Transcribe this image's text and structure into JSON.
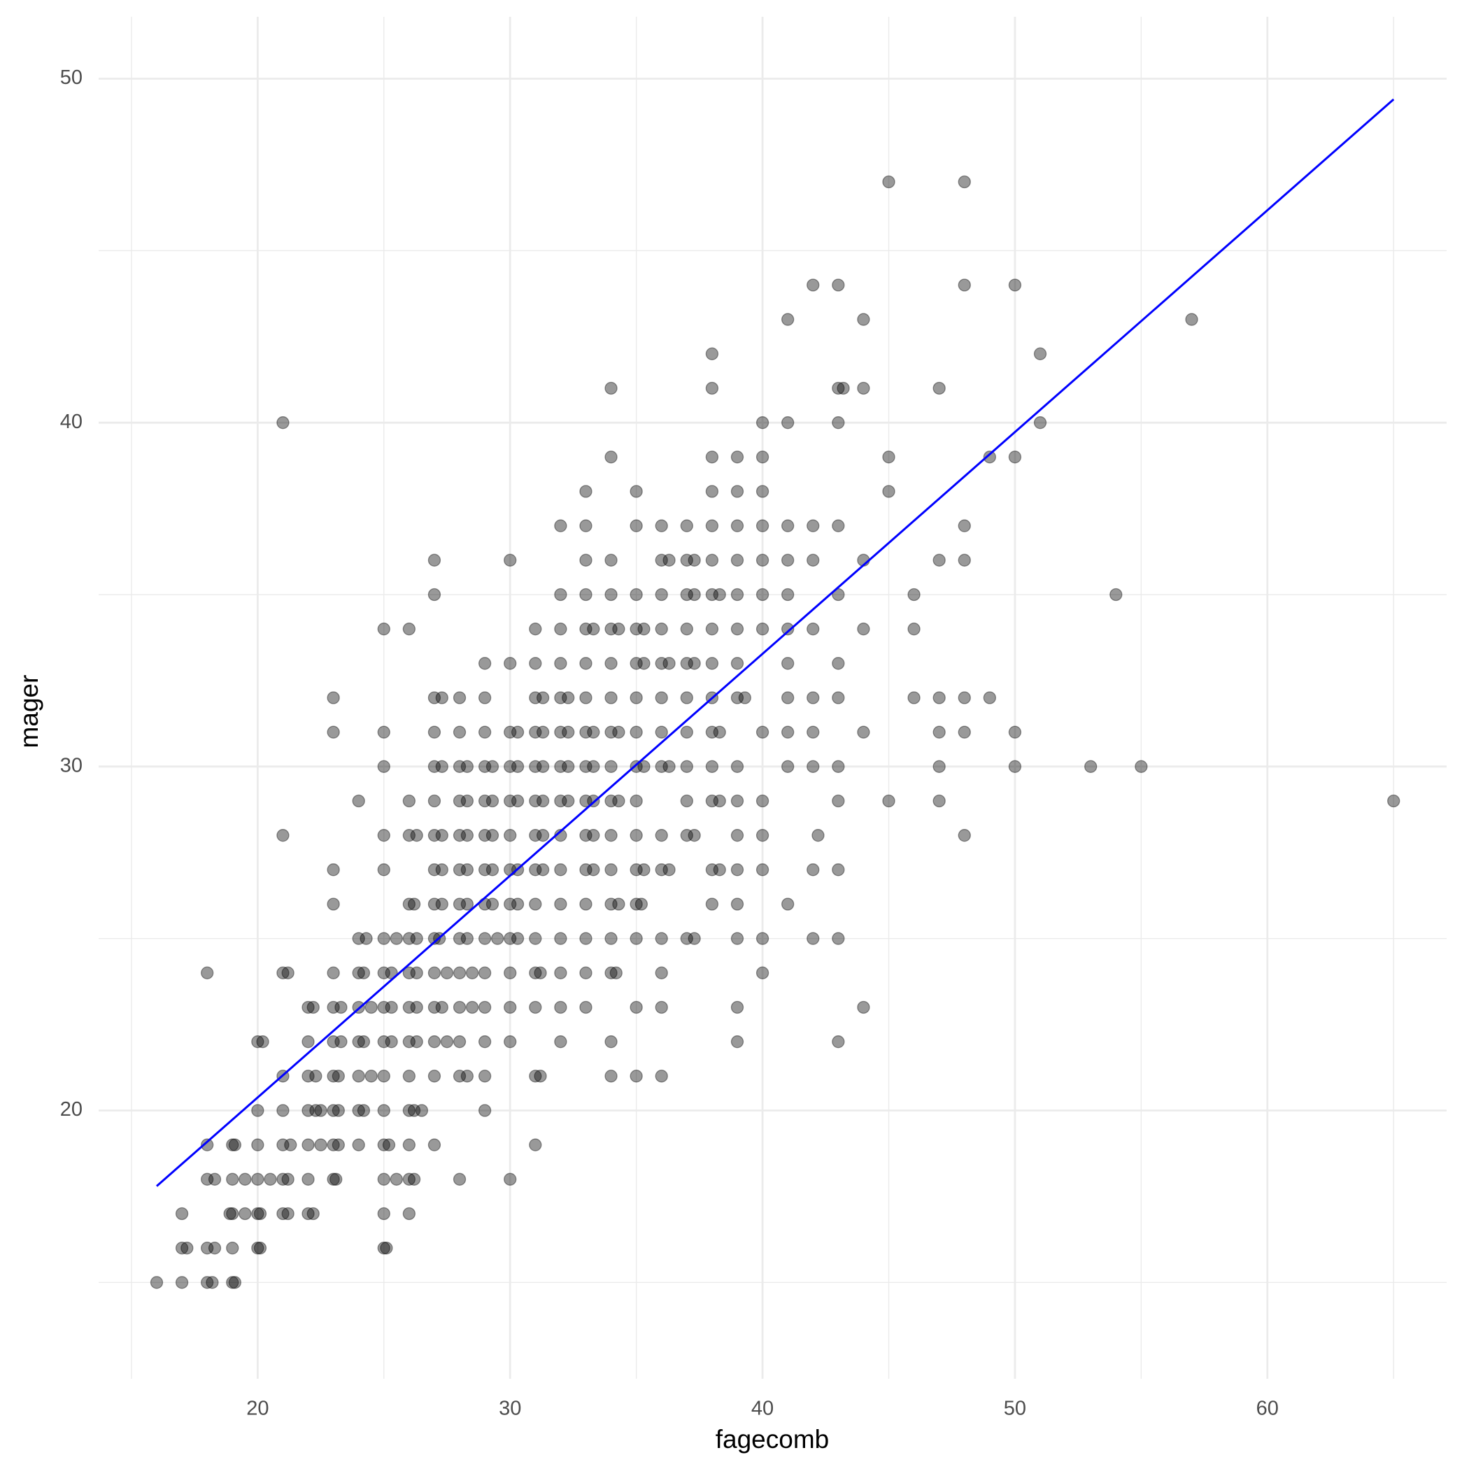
{
  "chart_data": {
    "type": "scatter",
    "x_label": "fagecomb",
    "y_label": "mager",
    "xlim": [
      13.7,
      67.1
    ],
    "ylim": [
      12.2,
      51.8
    ],
    "xticks": [
      20,
      30,
      40,
      50,
      60
    ],
    "yticks": [
      20,
      30,
      40,
      50
    ],
    "xminor": [
      15,
      25,
      35,
      45,
      55,
      65
    ],
    "yminor": [
      15,
      25,
      35,
      45
    ],
    "grid": true,
    "color": "#000000",
    "alpha": 0.4,
    "fit_line": {
      "x": [
        16,
        65
      ],
      "y": [
        17.8,
        49.4
      ],
      "color": "#0000ff"
    },
    "x": [
      16,
      17,
      18,
      18.2,
      19,
      19.1,
      17,
      17.2,
      18,
      18.3,
      19,
      20,
      20.1,
      25,
      25.1,
      17,
      18.9,
      19,
      19.5,
      20,
      20.1,
      21,
      21.2,
      22,
      22.2,
      25,
      26,
      18,
      18.3,
      19,
      19.5,
      20,
      20.5,
      21,
      21.2,
      22,
      23,
      23.1,
      25,
      25.5,
      26,
      26.2,
      28,
      30,
      18,
      19,
      19.1,
      20,
      21,
      21.3,
      22,
      22.5,
      23,
      23.2,
      24,
      25,
      25.2,
      26,
      27,
      31,
      20,
      21,
      22,
      22.3,
      22.5,
      23,
      23.2,
      24,
      24.2,
      25,
      26,
      26.2,
      26.5,
      29,
      21,
      22,
      22.3,
      23,
      23.2,
      24,
      24.5,
      25,
      26,
      27,
      28,
      28.3,
      29,
      31,
      31.2,
      34,
      35,
      36,
      20,
      20.2,
      22,
      23,
      23.3,
      24,
      24.2,
      25,
      25.3,
      26,
      26.3,
      27,
      27.5,
      28,
      29,
      30,
      32,
      34,
      39,
      43,
      22,
      22.2,
      23,
      23.3,
      24,
      24.5,
      25,
      25.3,
      26,
      26.3,
      27,
      27.3,
      28,
      28.5,
      29,
      30,
      31,
      32,
      33,
      35,
      36,
      39,
      44,
      18,
      21,
      21.2,
      23,
      24,
      24.2,
      25,
      25.3,
      26,
      26.3,
      27,
      27.5,
      28,
      28.5,
      29,
      30,
      31,
      31.2,
      32,
      33,
      34,
      34.2,
      36,
      40,
      24,
      24.3,
      25,
      25.5,
      26,
      26.3,
      27,
      27.2,
      28,
      28.3,
      29,
      29.5,
      30,
      30.3,
      31,
      32,
      33,
      34,
      35,
      36,
      37,
      37.3,
      39,
      40,
      42,
      43,
      23,
      26,
      26.2,
      27,
      27.3,
      28,
      28.3,
      29,
      29.3,
      30,
      30.3,
      31,
      32,
      33,
      34,
      34.3,
      35,
      35.2,
      38,
      39,
      41,
      23,
      25,
      27,
      27.3,
      28,
      28.3,
      29,
      29.3,
      30,
      30.3,
      31,
      31.3,
      32,
      33,
      33.3,
      34,
      35,
      35.3,
      36,
      36.3,
      38,
      38.3,
      39,
      40,
      42,
      43,
      21,
      25,
      26,
      26.3,
      27,
      27.3,
      28,
      28.3,
      29,
      29.3,
      30,
      31,
      31.3,
      32,
      33,
      33.3,
      34,
      35,
      36,
      37,
      37.3,
      39,
      40,
      42.2,
      48,
      24,
      26,
      27,
      28,
      28.3,
      29,
      29.3,
      30,
      30.3,
      31,
      31.3,
      32,
      32.3,
      33,
      33.3,
      34,
      34.3,
      35,
      37,
      38,
      38.3,
      39,
      40,
      43,
      45,
      47,
      65,
      25,
      27,
      27.3,
      28,
      28.3,
      29,
      29.3,
      30,
      30.3,
      31,
      31.3,
      32,
      32.3,
      33,
      33.3,
      34,
      35,
      35.3,
      36,
      36.3,
      37,
      38,
      39,
      41,
      42,
      43,
      47,
      50,
      53,
      55,
      23,
      25,
      27,
      28,
      29,
      30,
      30.3,
      31,
      31.3,
      32,
      32.3,
      33,
      33.3,
      34,
      34.3,
      35,
      36,
      37,
      38,
      38.3,
      40,
      41,
      42,
      44,
      47,
      48,
      50,
      23,
      27,
      27.3,
      28,
      29,
      31,
      31.3,
      32,
      32.3,
      33,
      34,
      35,
      36,
      37,
      38,
      39,
      39.3,
      41,
      42,
      43,
      46,
      47,
      48,
      49,
      29,
      30,
      31,
      32,
      33,
      34,
      35,
      35.3,
      36,
      36.3,
      37,
      37.3,
      38,
      39,
      41,
      43,
      25,
      26,
      31,
      32,
      33,
      33.3,
      34,
      34.3,
      35,
      35.3,
      36,
      37,
      38,
      39,
      40,
      41,
      42,
      44,
      46,
      27,
      32,
      33,
      34,
      35,
      36,
      37,
      37.3,
      38,
      38.3,
      39,
      40,
      41,
      43,
      46,
      54,
      27,
      30,
      33,
      34,
      36,
      36.3,
      37,
      37.3,
      38,
      39,
      40,
      41,
      42,
      44,
      47,
      48,
      32,
      33,
      35,
      36,
      37,
      38,
      39,
      40,
      41,
      42,
      43,
      48,
      33,
      35,
      38,
      39,
      40,
      45,
      34,
      38,
      39,
      40,
      45,
      49,
      50,
      21,
      40,
      41,
      43,
      51,
      34,
      38,
      43,
      43.2,
      44,
      47,
      38,
      51,
      41,
      44,
      57,
      42,
      43,
      48,
      50,
      45,
      48
    ],
    "values": [
      15,
      15,
      15,
      15,
      15,
      15,
      16,
      16,
      16,
      16,
      16,
      16,
      16,
      16,
      16,
      17,
      17,
      17,
      17,
      17,
      17,
      17,
      17,
      17,
      17,
      17,
      17,
      18,
      18,
      18,
      18,
      18,
      18,
      18,
      18,
      18,
      18,
      18,
      18,
      18,
      18,
      18,
      18,
      18,
      19,
      19,
      19,
      19,
      19,
      19,
      19,
      19,
      19,
      19,
      19,
      19,
      19,
      19,
      19,
      19,
      20,
      20,
      20,
      20,
      20,
      20,
      20,
      20,
      20,
      20,
      20,
      20,
      20,
      20,
      21,
      21,
      21,
      21,
      21,
      21,
      21,
      21,
      21,
      21,
      21,
      21,
      21,
      21,
      21,
      21,
      21,
      21,
      22,
      22,
      22,
      22,
      22,
      22,
      22,
      22,
      22,
      22,
      22,
      22,
      22,
      22,
      22,
      22,
      22,
      22,
      22,
      22,
      23,
      23,
      23,
      23,
      23,
      23,
      23,
      23,
      23,
      23,
      23,
      23,
      23,
      23,
      23,
      23,
      23,
      23,
      23,
      23,
      23,
      23,
      23,
      24,
      24,
      24,
      24,
      24,
      24,
      24,
      24,
      24,
      24,
      24,
      24,
      24,
      24,
      24,
      24,
      24,
      24,
      24,
      24,
      24,
      24,
      24,
      24,
      25,
      25,
      25,
      25,
      25,
      25,
      25,
      25,
      25,
      25,
      25,
      25,
      25,
      25,
      25,
      25,
      25,
      25,
      25,
      25,
      25,
      25,
      25,
      25,
      25,
      25,
      26,
      26,
      26,
      26,
      26,
      26,
      26,
      26,
      26,
      26,
      26,
      26,
      26,
      26,
      26,
      26,
      26,
      26,
      26,
      26,
      26,
      27,
      27,
      27,
      27,
      27,
      27,
      27,
      27,
      27,
      27,
      27,
      27,
      27,
      27,
      27,
      27,
      27,
      27,
      27,
      27,
      27,
      27,
      27,
      27,
      27,
      27,
      28,
      28,
      28,
      28,
      28,
      28,
      28,
      28,
      28,
      28,
      28,
      28,
      28,
      28,
      28,
      28,
      28,
      28,
      28,
      28,
      28,
      28,
      28,
      28,
      28,
      29,
      29,
      29,
      29,
      29,
      29,
      29,
      29,
      29,
      29,
      29,
      29,
      29,
      29,
      29,
      29,
      29,
      29,
      29,
      29,
      29,
      29,
      29,
      29,
      29,
      29,
      29,
      30,
      30,
      30,
      30,
      30,
      30,
      30,
      30,
      30,
      30,
      30,
      30,
      30,
      30,
      30,
      30,
      30,
      30,
      30,
      30,
      30,
      30,
      30,
      30,
      30,
      30,
      30,
      30,
      30,
      30,
      31,
      31,
      31,
      31,
      31,
      31,
      31,
      31,
      31,
      31,
      31,
      31,
      31,
      31,
      31,
      31,
      31,
      31,
      31,
      31,
      31,
      31,
      31,
      31,
      31,
      31,
      31,
      32,
      32,
      32,
      32,
      32,
      32,
      32,
      32,
      32,
      32,
      32,
      32,
      32,
      32,
      32,
      32,
      32,
      32,
      32,
      32,
      32,
      32,
      32,
      32,
      33,
      33,
      33,
      33,
      33,
      33,
      33,
      33,
      33,
      33,
      33,
      33,
      33,
      33,
      33,
      33,
      34,
      34,
      34,
      34,
      34,
      34,
      34,
      34,
      34,
      34,
      34,
      34,
      34,
      34,
      34,
      34,
      34,
      34,
      34,
      35,
      35,
      35,
      35,
      35,
      35,
      35,
      35,
      35,
      35,
      35,
      35,
      35,
      35,
      35,
      35,
      36,
      36,
      36,
      36,
      36,
      36,
      36,
      36,
      36,
      36,
      36,
      36,
      36,
      36,
      36,
      36,
      37,
      37,
      37,
      37,
      37,
      37,
      37,
      37,
      37,
      37,
      37,
      37,
      38,
      38,
      38,
      38,
      38,
      38,
      39,
      39,
      39,
      39,
      39,
      39,
      39,
      40,
      40,
      40,
      40,
      40,
      41,
      41,
      41,
      41,
      41,
      41,
      42,
      42,
      43,
      43,
      43,
      44,
      44,
      44,
      44,
      47,
      47
    ]
  }
}
